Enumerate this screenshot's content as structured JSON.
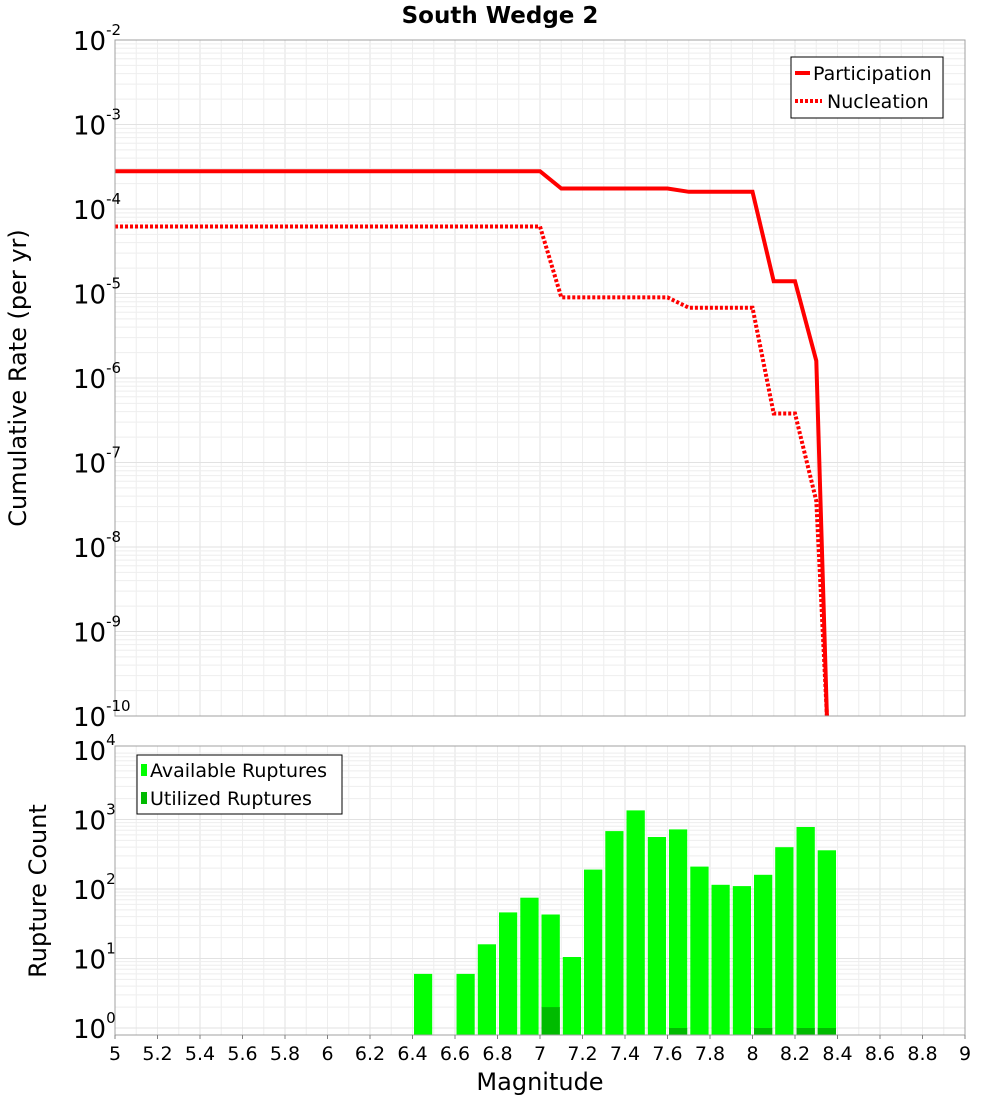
{
  "chart_data": [
    {
      "type": "line",
      "title": "South Wedge 2",
      "xlabel": "",
      "ylabel": "Cumulative Rate (per yr)",
      "xlim": [
        5,
        9
      ],
      "ylim_exponent": [
        -10,
        -2
      ],
      "y_scale": "log",
      "y_tick_base": "10",
      "y_tick_exponents": [
        "-10",
        "-9",
        "-8",
        "-7",
        "-6",
        "-5",
        "-4",
        "-3",
        "-2"
      ],
      "grid": true,
      "legend": {
        "placement": "top-right",
        "entries": [
          "Participation",
          "Nucleation"
        ]
      },
      "series": [
        {
          "name": "Participation",
          "style": "solid",
          "color": "#ff0000",
          "x": [
            5.0,
            7.0,
            7.1,
            7.6,
            7.7,
            8.0,
            8.1,
            8.2,
            8.3,
            8.35
          ],
          "y": [
            0.00028,
            0.00028,
            0.000175,
            0.000175,
            0.00016,
            0.00016,
            1.4e-05,
            1.4e-05,
            1.6e-06,
            1e-10
          ]
        },
        {
          "name": "Nucleation",
          "style": "dotted",
          "color": "#ff0000",
          "x": [
            5.0,
            7.0,
            7.1,
            7.6,
            7.7,
            8.0,
            8.1,
            8.2,
            8.3,
            8.35
          ],
          "y": [
            6.2e-05,
            6.2e-05,
            9e-06,
            9e-06,
            6.8e-06,
            6.8e-06,
            3.8e-07,
            3.8e-07,
            3.5e-08,
            1e-10
          ]
        }
      ]
    },
    {
      "type": "bar",
      "xlabel": "Magnitude",
      "ylabel": "Rupture Count",
      "xlim": [
        5,
        9
      ],
      "ylim_exponent": [
        0,
        4
      ],
      "y_scale": "log",
      "y_tick_base": "10",
      "y_tick_exponents": [
        "0",
        "1",
        "2",
        "3",
        "4"
      ],
      "x_ticks": [
        "5",
        "5.2",
        "5.4",
        "5.6",
        "5.8",
        "6",
        "6.2",
        "6.4",
        "6.6",
        "6.8",
        "7",
        "7.2",
        "7.4",
        "7.6",
        "7.8",
        "8",
        "8.2",
        "8.4",
        "8.6",
        "8.8",
        "9"
      ],
      "grid": true,
      "legend": {
        "placement": "top-left",
        "entries": [
          "Available Ruptures",
          "Utilized Ruptures"
        ]
      },
      "bin_width": 0.1,
      "series": [
        {
          "name": "Available Ruptures",
          "color": "#00ff00",
          "x": [
            6.45,
            6.65,
            6.75,
            6.85,
            6.95,
            7.05,
            7.15,
            7.25,
            7.35,
            7.45,
            7.55,
            7.65,
            7.75,
            7.85,
            7.95,
            8.05,
            8.15,
            8.25,
            8.35
          ],
          "values": [
            6,
            6,
            16,
            46,
            75,
            43,
            10.5,
            190,
            680,
            1350,
            560,
            720,
            210,
            115,
            110,
            160,
            400,
            780,
            360
          ]
        },
        {
          "name": "Utilized Ruptures",
          "color": "#00bb00",
          "x": [
            7.05,
            7.65,
            8.05,
            8.25,
            8.35
          ],
          "values": [
            2,
            1,
            1,
            1,
            1
          ]
        }
      ]
    }
  ]
}
